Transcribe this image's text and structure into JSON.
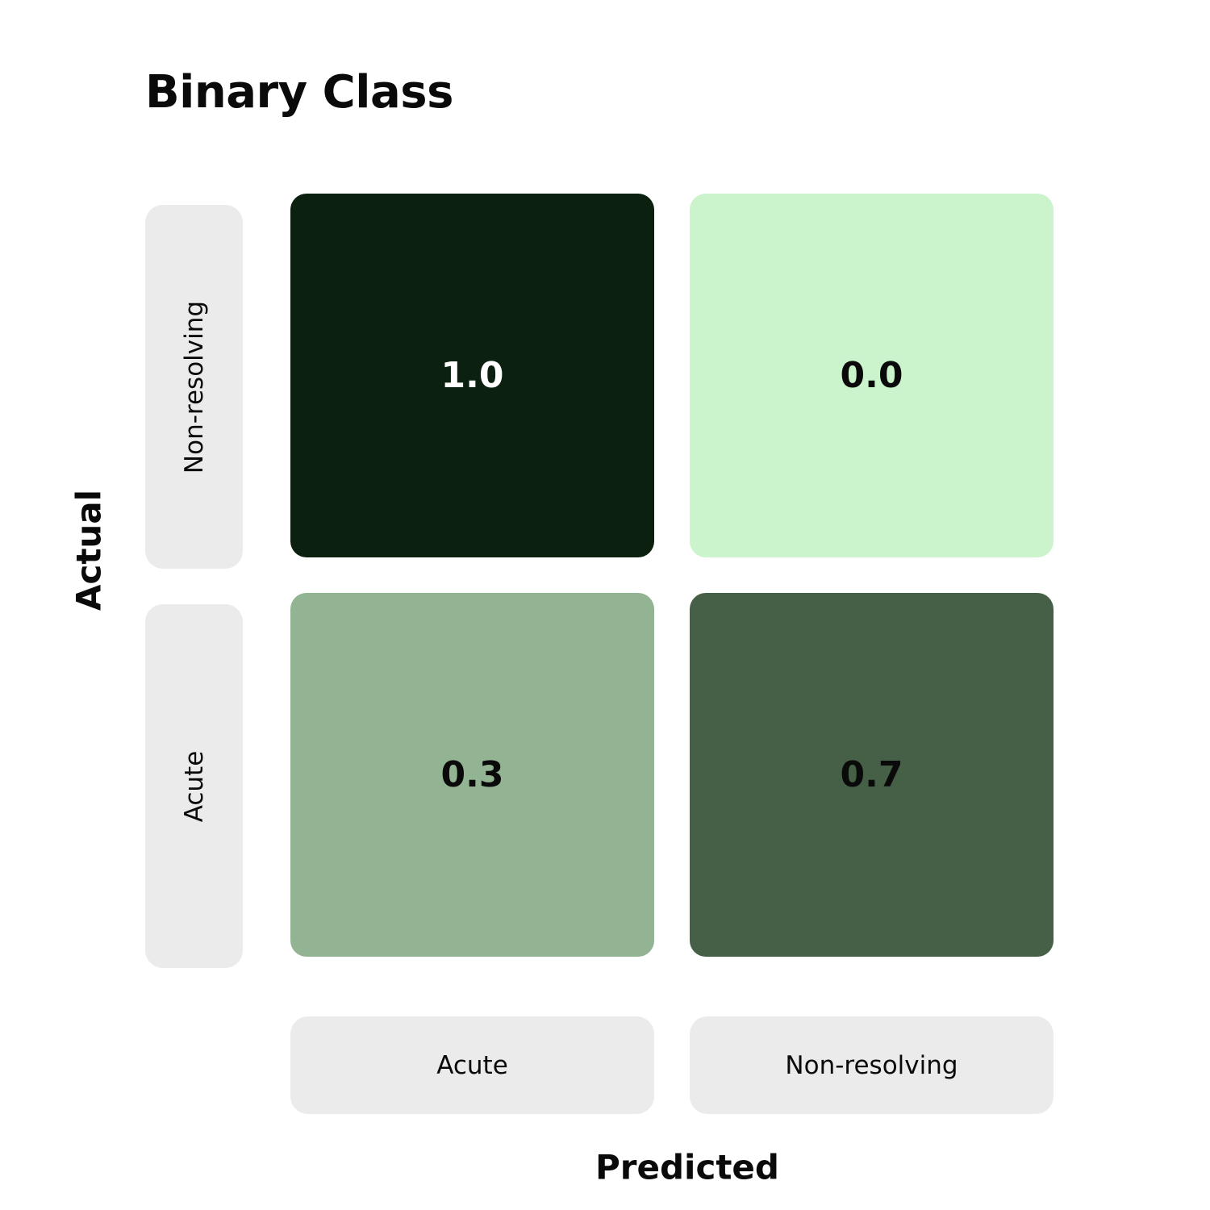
{
  "chart_data": {
    "type": "heatmap",
    "title": "Binary Class",
    "xlabel": "Predicted",
    "ylabel": "Actual",
    "rows": [
      "Non-resolving",
      "Acute"
    ],
    "columns": [
      "Acute",
      "Non-resolving"
    ],
    "values": [
      [
        1.0,
        0.0
      ],
      [
        0.3,
        0.7
      ]
    ],
    "value_labels": [
      [
        "1.0",
        "0.0"
      ],
      [
        "0.3",
        "0.7"
      ]
    ],
    "colors": {
      "low": "#ccf4cc",
      "high": "#0b200e",
      "label_bg": "#ebebeb",
      "text_dark": "#0a0a0a",
      "text_light": "#ffffff"
    }
  }
}
